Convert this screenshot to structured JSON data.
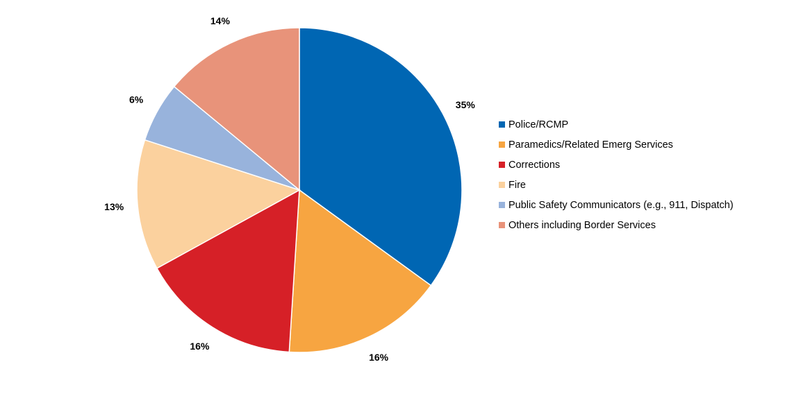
{
  "chart_data": {
    "type": "pie",
    "title": "",
    "series": [
      {
        "name": "Police/RCMP",
        "value": 35,
        "label": "35%",
        "color": "#0066B3"
      },
      {
        "name": "Paramedics/Related Emerg Services",
        "value": 16,
        "label": "16%",
        "color": "#F7A541"
      },
      {
        "name": "Corrections",
        "value": 16,
        "label": "16%",
        "color": "#D62027"
      },
      {
        "name": "Fire",
        "value": 13,
        "label": "13%",
        "color": "#FBD19E"
      },
      {
        "name": "Public Safety Communicators (e.g., 911, Dispatch)",
        "value": 6,
        "label": "6%",
        "color": "#98B3DC"
      },
      {
        "name": "Others including Border Services",
        "value": 14,
        "label": "14%",
        "color": "#E8937A"
      }
    ],
    "start_angle": "12 o'clock",
    "direction": "clockwise",
    "legend_position": "right"
  }
}
